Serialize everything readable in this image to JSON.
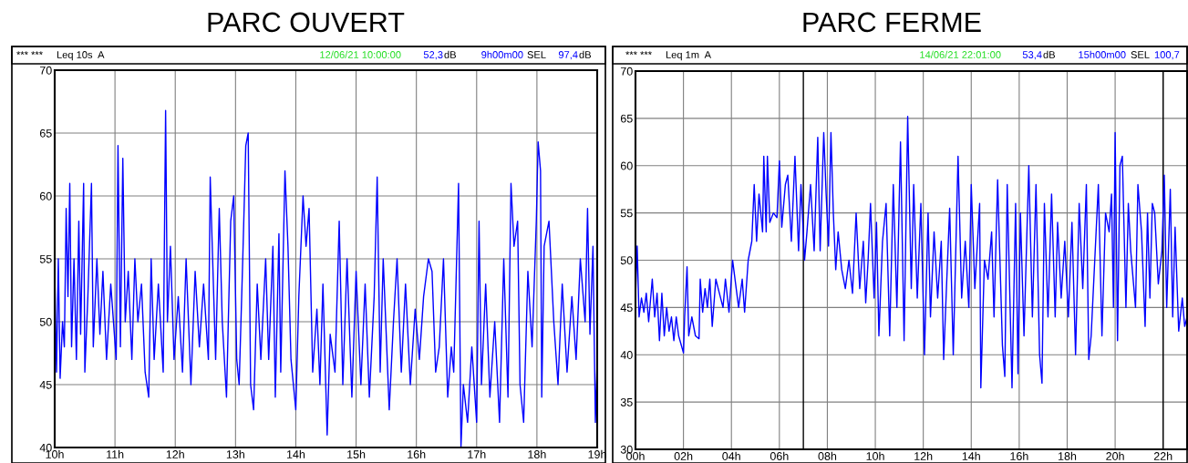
{
  "chart_data": [
    {
      "type": "line",
      "title": "PARC OUVERT",
      "annotations": [
        "*** ***",
        "Leq 10s  A",
        "12/06/21 10:00:00",
        "52,3",
        "dB",
        "9h00m00",
        "SEL",
        "97,4",
        "dB"
      ],
      "xlim": [
        10,
        19
      ],
      "ylim": [
        40,
        70
      ],
      "grid": true,
      "xticks": [
        {
          "value": 10,
          "label": "10h"
        },
        {
          "value": 11,
          "label": "11h"
        },
        {
          "value": 12,
          "label": "12h"
        },
        {
          "value": 13,
          "label": "13h"
        },
        {
          "value": 14,
          "label": "14h"
        },
        {
          "value": 15,
          "label": "15h"
        },
        {
          "value": 16,
          "label": "16h"
        },
        {
          "value": 17,
          "label": "17h"
        },
        {
          "value": 18,
          "label": "18h"
        },
        {
          "value": 19,
          "label": "19h"
        }
      ],
      "yticks": [
        40,
        45,
        50,
        55,
        60,
        65,
        70
      ],
      "series": [
        {
          "color": "#0000ff",
          "x": [
            10.0,
            10.03,
            10.06,
            10.09,
            10.13,
            10.16,
            10.19,
            10.22,
            10.25,
            10.28,
            10.32,
            10.36,
            10.4,
            10.43,
            10.48,
            10.5,
            10.55,
            10.61,
            10.64,
            10.7,
            10.75,
            10.8,
            10.86,
            10.93,
            11.02,
            11.05,
            11.09,
            11.13,
            11.17,
            11.22,
            11.28,
            11.33,
            11.38,
            11.44,
            11.5,
            11.56,
            11.6,
            11.65,
            11.72,
            11.8,
            11.84,
            11.87,
            11.92,
            11.98,
            12.05,
            12.12,
            12.18,
            12.26,
            12.33,
            12.4,
            12.47,
            12.55,
            12.58,
            12.62,
            12.67,
            12.73,
            12.78,
            12.85,
            12.92,
            12.97,
            13.02,
            13.06,
            13.12,
            13.17,
            13.21,
            13.25,
            13.3,
            13.36,
            13.42,
            13.5,
            13.55,
            13.62,
            13.66,
            13.72,
            13.75,
            13.82,
            13.87,
            13.92,
            14.0,
            14.05,
            14.12,
            14.17,
            14.22,
            14.28,
            14.35,
            14.4,
            14.45,
            14.52,
            14.57,
            14.65,
            14.72,
            14.78,
            14.85,
            14.93,
            15.0,
            15.08,
            15.15,
            15.22,
            15.3,
            15.35,
            15.4,
            15.45,
            15.55,
            15.62,
            15.68,
            15.75,
            15.82,
            15.9,
            15.98,
            16.05,
            16.12,
            16.2,
            16.26,
            16.32,
            16.38,
            16.45,
            16.52,
            16.58,
            16.62,
            16.7,
            16.74,
            16.78,
            16.85,
            16.92,
            17.0,
            17.04,
            17.08,
            17.15,
            17.22,
            17.3,
            17.38,
            17.45,
            17.52,
            17.57,
            17.62,
            17.68,
            17.72,
            17.78,
            17.85,
            17.92,
            17.99,
            18.02,
            18.06,
            18.08,
            18.12,
            18.2,
            18.28,
            18.35,
            18.42,
            18.5,
            18.58,
            18.65,
            18.72,
            18.8,
            18.84,
            18.88,
            18.93,
            18.97,
            19.0
          ],
          "values": [
            54,
            46,
            55,
            45.5,
            50,
            48,
            59,
            52,
            61,
            48,
            55,
            47,
            58,
            49,
            61,
            46,
            52,
            61,
            48,
            55,
            49,
            54,
            47,
            53,
            47,
            64,
            48,
            63,
            50,
            54,
            47,
            55,
            50,
            53,
            46,
            44,
            55,
            47,
            53,
            46,
            66.8,
            50,
            56,
            47,
            52,
            46,
            55,
            45,
            54,
            48,
            53,
            47,
            61.5,
            55,
            47,
            59,
            50,
            44,
            58,
            60,
            47,
            45,
            55,
            64,
            65,
            45,
            43,
            53,
            47,
            55,
            47,
            56,
            44,
            57,
            46,
            62,
            56,
            47,
            43,
            52,
            60,
            56,
            59,
            46,
            51,
            45,
            53,
            41,
            49,
            46,
            58,
            45,
            55,
            44,
            54,
            45,
            53,
            44,
            52,
            61.5,
            46,
            55,
            43,
            50,
            55,
            46,
            53,
            45,
            51,
            47,
            52,
            55,
            54,
            46,
            48,
            55,
            44,
            48,
            46,
            61,
            40,
            45,
            42,
            48,
            42,
            58,
            45,
            53,
            44,
            50,
            42,
            55,
            44,
            61,
            56,
            58,
            45,
            42,
            54,
            48,
            58,
            64.3,
            62,
            44,
            56,
            58,
            50,
            45,
            53,
            46,
            52,
            47,
            55,
            50,
            59,
            49,
            56,
            42,
            47
          ]
        }
      ]
    },
    {
      "type": "line",
      "title": "PARC FERME",
      "annotations": [
        "*** ***",
        "Leq 1m  A",
        "14/06/21 22:01:00",
        "53,4",
        "dB",
        "15h00m00",
        "SEL",
        "100,7"
      ],
      "xlim": [
        0,
        23
      ],
      "ylim": [
        30,
        70
      ],
      "grid": true,
      "xticks": [
        {
          "value": 0,
          "label": "00h"
        },
        {
          "value": 2,
          "label": "02h"
        },
        {
          "value": 4,
          "label": "04h"
        },
        {
          "value": 6,
          "label": "06h"
        },
        {
          "value": 8,
          "label": "08h"
        },
        {
          "value": 10,
          "label": "10h"
        },
        {
          "value": 12,
          "label": "12h"
        },
        {
          "value": 14,
          "label": "14h"
        },
        {
          "value": 16,
          "label": "16h"
        },
        {
          "value": 18,
          "label": "18h"
        },
        {
          "value": 20,
          "label": "20h"
        },
        {
          "value": 22,
          "label": "22h"
        }
      ],
      "yticks": [
        30,
        35,
        40,
        45,
        50,
        55,
        60,
        65,
        70
      ],
      "ref_lines": [
        {
          "axis": "x",
          "value": 7,
          "color": "#000000"
        },
        {
          "axis": "x",
          "value": 22,
          "color": "#000000"
        }
      ],
      "series": [
        {
          "color": "#0000ff",
          "x": [
            0.0,
            0.07,
            0.15,
            0.25,
            0.35,
            0.45,
            0.55,
            0.7,
            0.8,
            0.9,
            1.0,
            1.1,
            1.2,
            1.3,
            1.4,
            1.5,
            1.6,
            1.7,
            1.8,
            2.0,
            2.05,
            2.15,
            2.22,
            2.35,
            2.5,
            2.65,
            2.7,
            2.8,
            2.9,
            3.0,
            3.1,
            3.2,
            3.35,
            3.5,
            3.65,
            3.75,
            3.9,
            4.05,
            4.2,
            4.3,
            4.45,
            4.55,
            4.7,
            4.85,
            4.95,
            5.05,
            5.15,
            5.3,
            5.35,
            5.45,
            5.5,
            5.6,
            5.75,
            5.9,
            6.0,
            6.1,
            6.25,
            6.35,
            6.5,
            6.65,
            6.8,
            6.9,
            7.05,
            7.15,
            7.3,
            7.45,
            7.6,
            7.7,
            7.85,
            7.95,
            8.05,
            8.15,
            8.25,
            8.35,
            8.45,
            8.6,
            8.75,
            8.9,
            9.05,
            9.2,
            9.35,
            9.5,
            9.6,
            9.7,
            9.8,
            9.95,
            10.05,
            10.15,
            10.3,
            10.45,
            10.6,
            10.75,
            10.9,
            11.05,
            11.2,
            11.35,
            11.5,
            11.6,
            11.75,
            11.9,
            12.05,
            12.2,
            12.3,
            12.45,
            12.6,
            12.75,
            12.85,
            12.95,
            13.1,
            13.25,
            13.45,
            13.6,
            13.75,
            13.9,
            14.0,
            14.15,
            14.35,
            14.4,
            14.55,
            14.7,
            14.85,
            14.95,
            15.1,
            15.3,
            15.4,
            15.5,
            15.7,
            15.85,
            15.95,
            16.05,
            16.2,
            16.4,
            16.55,
            16.7,
            16.85,
            16.95,
            17.05,
            17.2,
            17.35,
            17.5,
            17.6,
            17.75,
            17.9,
            18.05,
            18.2,
            18.35,
            18.5,
            18.65,
            18.8,
            18.9,
            19.0,
            19.15,
            19.3,
            19.45,
            19.6,
            19.75,
            19.85,
            19.93,
            20.0,
            20.1,
            20.2,
            20.3,
            20.45,
            20.55,
            20.65,
            20.85,
            20.95,
            21.1,
            21.25,
            21.35,
            21.45,
            21.55,
            21.65,
            21.8,
            21.95,
            22.05,
            22.15,
            22.3,
            22.4,
            22.5,
            22.65,
            22.8,
            22.9,
            23.0
          ],
          "values": [
            46,
            51.5,
            44,
            46,
            44.5,
            46.5,
            43.5,
            48,
            44,
            46.5,
            41.5,
            46.5,
            42,
            45,
            42.5,
            44,
            41.5,
            44,
            42,
            40.2,
            44,
            49.3,
            42,
            44,
            42,
            41.7,
            48,
            44.5,
            47,
            45,
            48,
            43,
            48,
            46.5,
            45,
            48,
            44.5,
            50,
            47,
            45,
            48,
            44.5,
            50,
            52,
            58,
            52,
            57,
            53,
            61,
            53,
            61,
            54,
            55,
            54.5,
            60.5,
            53.5,
            58,
            59,
            52,
            61,
            51,
            58,
            50,
            53,
            58,
            51,
            63,
            51,
            63.5,
            57,
            51.5,
            63.5,
            55,
            49,
            53,
            49,
            47,
            50,
            46.5,
            55,
            47,
            52,
            45.5,
            50,
            56,
            46,
            54,
            42,
            52,
            56,
            42,
            58,
            45,
            62.5,
            41.5,
            65.2,
            47,
            58,
            46,
            56,
            40,
            55,
            44,
            53,
            46,
            52,
            39.5,
            46,
            55.5,
            40,
            61,
            46,
            52,
            45,
            58,
            47,
            56,
            36.5,
            50,
            48,
            53,
            44,
            58.5,
            41,
            37.7,
            58,
            36.5,
            56,
            38,
            55,
            42,
            60,
            44,
            58,
            40,
            37,
            56,
            44,
            57,
            44,
            54,
            46,
            52,
            44,
            54,
            40,
            56,
            47,
            58,
            39.5,
            42,
            50,
            58,
            42,
            55,
            53,
            57,
            45,
            63.5,
            41.5,
            60,
            61,
            45,
            56,
            51,
            45,
            58,
            53,
            43,
            55,
            46,
            56,
            55,
            47.5,
            51,
            59,
            45,
            57.5,
            44,
            53.5,
            42.5,
            46,
            43,
            44
          ]
        }
      ]
    }
  ]
}
